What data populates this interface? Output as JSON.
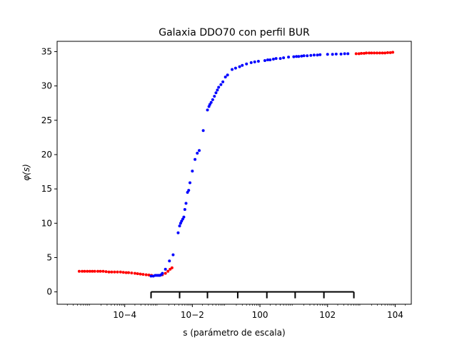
{
  "chart_data": {
    "type": "scatter",
    "title": "Galaxia DDO70 con perfil BUR",
    "xlabel": "s (parámetro de escala)",
    "ylabel": "φ(s)",
    "xscale": "log",
    "xlim": [
      1e-06,
      30000.0
    ],
    "ylim": [
      -1.8,
      36.5
    ],
    "x_ticks": [
      {
        "value": 0.0001,
        "label": "10−4"
      },
      {
        "value": 0.01,
        "label": "10−2"
      },
      {
        "value": 1,
        "label": "100"
      },
      {
        "value": 100,
        "label": "102"
      },
      {
        "value": 10000,
        "label": "104"
      }
    ],
    "y_ticks": [
      0,
      5,
      10,
      15,
      20,
      25,
      30,
      35
    ],
    "grid": false,
    "series": [
      {
        "color": "#ff0000",
        "x": [
          4.5e-06,
          5.5e-06,
          6.5e-06,
          7.8e-06,
          9.3e-06,
          1.1e-05,
          1.3e-05,
          1.6e-05,
          1.9e-05,
          2.3e-05,
          2.8e-05,
          3.4e-05,
          4.1e-05,
          5e-05,
          6.1e-05,
          7.5e-05,
          9.1e-05,
          0.00011,
          0.00013,
          0.00016,
          0.0002,
          0.00024,
          0.00029,
          0.00035,
          0.00043,
          0.00052,
          0.00062
        ],
        "y": [
          3.0,
          3.0,
          3.0,
          3.0,
          3.0,
          3.0,
          3.0,
          3.0,
          3.0,
          3.0,
          2.95,
          2.9,
          2.9,
          2.9,
          2.9,
          2.9,
          2.85,
          2.8,
          2.8,
          2.75,
          2.7,
          2.65,
          2.6,
          2.55,
          2.5,
          2.45,
          2.4
        ]
      },
      {
        "color": "#ff0000",
        "x": [
          0.0013,
          0.0016,
          0.0019,
          0.0022,
          0.0025
        ],
        "y": [
          2.5,
          2.7,
          3.0,
          3.3,
          3.5
        ]
      },
      {
        "color": "#0000ff",
        "x": [
          0.0006,
          0.0007,
          0.0008,
          0.0009,
          0.001,
          0.0011,
          0.0012,
          0.0013,
          0.0016,
          0.0021,
          0.0027,
          0.0038,
          0.0042,
          0.0045,
          0.0048,
          0.0052,
          0.0056,
          0.006,
          0.0065,
          0.0072,
          0.0078,
          0.0085,
          0.01,
          0.012,
          0.014,
          0.016,
          0.021,
          0.028,
          0.031,
          0.033,
          0.036,
          0.04,
          0.045,
          0.05,
          0.055,
          0.06,
          0.07,
          0.08,
          0.095,
          0.11,
          0.15,
          0.19,
          0.25,
          0.3,
          0.4,
          0.55,
          0.7,
          0.9,
          1.4,
          1.7,
          2.0,
          2.5,
          3.0,
          4.0,
          5.0,
          7.0,
          10,
          12,
          14,
          17,
          20,
          25,
          32,
          40,
          50,
          60,
          100,
          140,
          180,
          250,
          320,
          400
        ],
        "y": [
          2.3,
          2.3,
          2.4,
          2.4,
          2.4,
          2.4,
          2.5,
          2.7,
          3.3,
          4.5,
          5.4,
          8.6,
          9.6,
          10.0,
          10.3,
          10.6,
          10.9,
          12.0,
          12.9,
          14.5,
          14.8,
          15.9,
          17.6,
          19.3,
          20.2,
          20.6,
          23.5,
          26.5,
          27.0,
          27.3,
          27.6,
          28.0,
          28.5,
          29.0,
          29.4,
          29.8,
          30.2,
          30.6,
          31.3,
          31.6,
          32.4,
          32.6,
          32.8,
          33.0,
          33.2,
          33.4,
          33.5,
          33.6,
          33.7,
          33.8,
          33.8,
          33.9,
          34.0,
          34.0,
          34.1,
          34.2,
          34.25,
          34.3,
          34.3,
          34.35,
          34.4,
          34.4,
          34.45,
          34.5,
          34.5,
          34.55,
          34.6,
          34.6,
          34.65,
          34.65,
          34.7,
          34.7
        ]
      },
      {
        "color": "#ff0000",
        "x": [
          700,
          850,
          1000,
          1200,
          1400,
          1700,
          2000,
          2400,
          2900,
          3500,
          4200,
          5000,
          6000,
          7200,
          8500
        ],
        "y": [
          34.7,
          34.7,
          34.75,
          34.75,
          34.8,
          34.8,
          34.8,
          34.8,
          34.8,
          34.8,
          34.8,
          34.8,
          34.85,
          34.85,
          34.9
        ]
      }
    ],
    "annotation": {
      "type": "bracket",
      "y": 0,
      "ticks_x": [
        0.0006,
        0.0042,
        0.028,
        0.22,
        1.6,
        11,
        78,
        600
      ]
    }
  }
}
